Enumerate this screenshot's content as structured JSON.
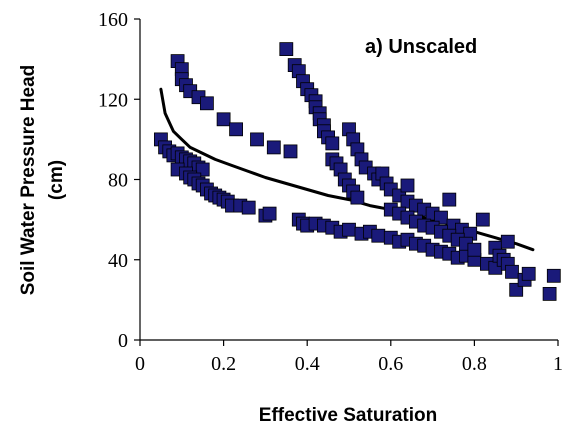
{
  "chart_data": {
    "type": "scatter",
    "title": "",
    "annotation": "a) Unscaled",
    "xlabel": "Effective Saturation",
    "ylabel_line1": "Soil Water Pressure Head",
    "ylabel_line2": "(cm)",
    "xlim": [
      0,
      1
    ],
    "ylim": [
      0,
      160
    ],
    "xticks": [
      0,
      0.2,
      0.4,
      0.6,
      0.8,
      1
    ],
    "xtick_labels": [
      "0",
      "0.2",
      "0.4",
      "0.6",
      "0.8",
      "1"
    ],
    "yticks": [
      0,
      40,
      80,
      120,
      160
    ],
    "ytick_labels": [
      "0",
      "40",
      "80",
      "120",
      "160"
    ],
    "grid": false,
    "legend": "none",
    "marker_color": "#1a1a7a",
    "marker_edge_color": "#000000",
    "line_color": "#000000",
    "series": [
      {
        "kind": "scatter",
        "points": [
          [
            0.35,
            145
          ],
          [
            0.37,
            137
          ],
          [
            0.38,
            134
          ],
          [
            0.39,
            129
          ],
          [
            0.4,
            125
          ],
          [
            0.41,
            122
          ],
          [
            0.42,
            119
          ],
          [
            0.42,
            116
          ],
          [
            0.43,
            113
          ],
          [
            0.43,
            110
          ],
          [
            0.44,
            107
          ],
          [
            0.44,
            104
          ],
          [
            0.45,
            101
          ],
          [
            0.46,
            98
          ],
          [
            0.46,
            90
          ],
          [
            0.47,
            88
          ],
          [
            0.48,
            85
          ],
          [
            0.49,
            80
          ],
          [
            0.5,
            77
          ],
          [
            0.51,
            74
          ],
          [
            0.52,
            71
          ],
          [
            0.5,
            105
          ],
          [
            0.51,
            100
          ],
          [
            0.52,
            95
          ],
          [
            0.53,
            90
          ],
          [
            0.54,
            86
          ],
          [
            0.56,
            83
          ],
          [
            0.57,
            80
          ],
          [
            0.58,
            83
          ],
          [
            0.59,
            78
          ],
          [
            0.6,
            75
          ],
          [
            0.62,
            72
          ],
          [
            0.64,
            77
          ],
          [
            0.64,
            69
          ],
          [
            0.66,
            67
          ],
          [
            0.68,
            65
          ],
          [
            0.7,
            63
          ],
          [
            0.72,
            61
          ],
          [
            0.74,
            70
          ],
          [
            0.75,
            57
          ],
          [
            0.77,
            55
          ],
          [
            0.79,
            53
          ],
          [
            0.82,
            60
          ],
          [
            0.85,
            46
          ],
          [
            0.88,
            49
          ],
          [
            0.09,
            139
          ],
          [
            0.1,
            135
          ],
          [
            0.1,
            130
          ],
          [
            0.11,
            127
          ],
          [
            0.12,
            124
          ],
          [
            0.14,
            121
          ],
          [
            0.16,
            118
          ],
          [
            0.2,
            110
          ],
          [
            0.23,
            105
          ],
          [
            0.28,
            100
          ],
          [
            0.32,
            96
          ],
          [
            0.36,
            94
          ],
          [
            0.05,
            100
          ],
          [
            0.06,
            96
          ],
          [
            0.07,
            94
          ],
          [
            0.08,
            92
          ],
          [
            0.09,
            93
          ],
          [
            0.1,
            91
          ],
          [
            0.11,
            90
          ],
          [
            0.12,
            89
          ],
          [
            0.13,
            88
          ],
          [
            0.14,
            86
          ],
          [
            0.15,
            85
          ],
          [
            0.09,
            85
          ],
          [
            0.11,
            83
          ],
          [
            0.12,
            81
          ],
          [
            0.13,
            80
          ],
          [
            0.14,
            78
          ],
          [
            0.15,
            77
          ],
          [
            0.16,
            75
          ],
          [
            0.17,
            73
          ],
          [
            0.18,
            72
          ],
          [
            0.19,
            71
          ],
          [
            0.2,
            70
          ],
          [
            0.21,
            69
          ],
          [
            0.22,
            67
          ],
          [
            0.24,
            67
          ],
          [
            0.26,
            66
          ],
          [
            0.3,
            62
          ],
          [
            0.31,
            63
          ],
          [
            0.38,
            60
          ],
          [
            0.39,
            58
          ],
          [
            0.4,
            57
          ],
          [
            0.42,
            58
          ],
          [
            0.44,
            57
          ],
          [
            0.46,
            56
          ],
          [
            0.48,
            54
          ],
          [
            0.5,
            55
          ],
          [
            0.53,
            53
          ],
          [
            0.55,
            54
          ],
          [
            0.57,
            52
          ],
          [
            0.6,
            51
          ],
          [
            0.62,
            49
          ],
          [
            0.64,
            50
          ],
          [
            0.66,
            48
          ],
          [
            0.68,
            47
          ],
          [
            0.7,
            45
          ],
          [
            0.72,
            44
          ],
          [
            0.74,
            43
          ],
          [
            0.76,
            41
          ],
          [
            0.78,
            42
          ],
          [
            0.8,
            40
          ],
          [
            0.83,
            38
          ],
          [
            0.85,
            36
          ],
          [
            0.86,
            42
          ],
          [
            0.87,
            40
          ],
          [
            0.88,
            38
          ],
          [
            0.89,
            34
          ],
          [
            0.9,
            25
          ],
          [
            0.92,
            30
          ],
          [
            0.93,
            33
          ],
          [
            0.98,
            23
          ],
          [
            0.99,
            32
          ],
          [
            0.6,
            65
          ],
          [
            0.62,
            63
          ],
          [
            0.64,
            61
          ],
          [
            0.66,
            59
          ],
          [
            0.68,
            57
          ],
          [
            0.7,
            56
          ],
          [
            0.72,
            54
          ],
          [
            0.74,
            52
          ],
          [
            0.76,
            50
          ],
          [
            0.78,
            48
          ],
          [
            0.8,
            45
          ]
        ]
      },
      {
        "kind": "line",
        "points": [
          [
            0.05,
            125
          ],
          [
            0.06,
            113
          ],
          [
            0.08,
            104
          ],
          [
            0.1,
            100
          ],
          [
            0.12,
            96
          ],
          [
            0.15,
            93
          ],
          [
            0.18,
            90
          ],
          [
            0.22,
            87
          ],
          [
            0.26,
            84
          ],
          [
            0.3,
            81
          ],
          [
            0.35,
            78
          ],
          [
            0.4,
            75
          ],
          [
            0.45,
            72
          ],
          [
            0.5,
            70
          ],
          [
            0.55,
            67
          ],
          [
            0.6,
            65
          ],
          [
            0.65,
            62
          ],
          [
            0.7,
            60
          ],
          [
            0.75,
            57
          ],
          [
            0.8,
            54
          ],
          [
            0.85,
            51
          ],
          [
            0.9,
            48
          ],
          [
            0.94,
            45
          ]
        ]
      }
    ]
  }
}
